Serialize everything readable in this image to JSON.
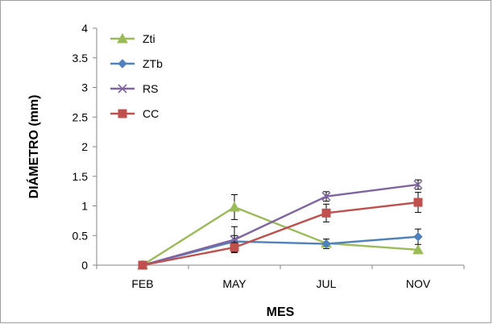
{
  "chart_data": {
    "type": "line",
    "categories": [
      "FEB",
      "MAY",
      "JUL",
      "NOV"
    ],
    "xlabel": "MES",
    "ylabel": "DIÁMETRO (mm)",
    "ylim": [
      0,
      4
    ],
    "yticks": [
      "0",
      "0.5",
      "1",
      "1.5",
      "2",
      "2.5",
      "3",
      "3.5",
      "4"
    ],
    "grid": false,
    "legend_position": "top-left",
    "series": [
      {
        "name": "Zti",
        "color": "#9bbb59",
        "marker": "triangle",
        "values": [
          0,
          0.98,
          0.37,
          0.26
        ],
        "error": [
          0,
          0.21,
          0,
          0
        ]
      },
      {
        "name": "ZTb",
        "color": "#4f81bd",
        "marker": "diamond",
        "values": [
          0,
          0.4,
          0.36,
          0.48
        ],
        "error": [
          0,
          0.1,
          0.08,
          0.13
        ]
      },
      {
        "name": "RS",
        "color": "#8064a2",
        "marker": "x",
        "values": [
          0,
          0.43,
          1.16,
          1.36
        ],
        "error": [
          0,
          0.22,
          0.08,
          0.08
        ]
      },
      {
        "name": "CC",
        "color": "#c0504d",
        "marker": "square",
        "values": [
          0,
          0.3,
          0.88,
          1.06
        ],
        "error": [
          0,
          0.08,
          0.15,
          0.17
        ]
      }
    ]
  }
}
